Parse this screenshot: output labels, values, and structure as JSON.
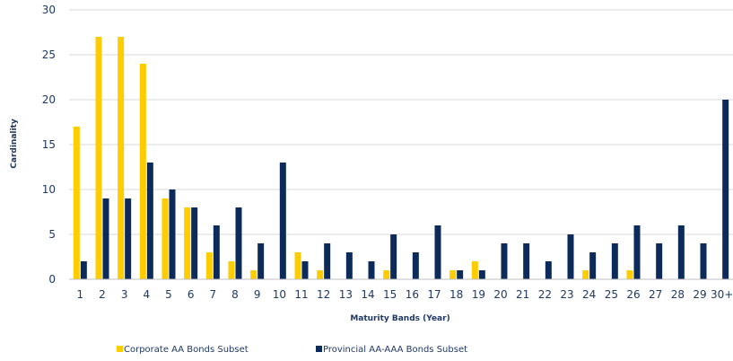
{
  "chart_data": {
    "type": "bar",
    "title": "",
    "xlabel": "Maturity Bands (Year)",
    "ylabel": "Cardinality",
    "ylim": [
      0,
      30
    ],
    "yticks": [
      "0",
      "5",
      "10",
      "15",
      "20",
      "25",
      "30"
    ],
    "grid": true,
    "legend_position": "bottom",
    "categories": [
      "1",
      "2",
      "3",
      "4",
      "5",
      "6",
      "7",
      "8",
      "9",
      "10",
      "11",
      "12",
      "13",
      "14",
      "15",
      "16",
      "17",
      "18",
      "19",
      "20",
      "21",
      "22",
      "23",
      "24",
      "25",
      "26",
      "27",
      "28",
      "29",
      "30+"
    ],
    "series": [
      {
        "name": "Corporate AA Bonds Subset",
        "color": "#ffcc00",
        "values": [
          17,
          27,
          27,
          24,
          9,
          8,
          3,
          2,
          1,
          0,
          3,
          1,
          0,
          0,
          1,
          0,
          0,
          1,
          2,
          0,
          0,
          0,
          0,
          1,
          0,
          1,
          0,
          0,
          0,
          0
        ]
      },
      {
        "name": "Provincial AA-AAA Bonds Subset",
        "color": "#0d2b5a",
        "values": [
          2,
          9,
          9,
          13,
          10,
          8,
          6,
          8,
          4,
          13,
          2,
          4,
          3,
          2,
          5,
          3,
          6,
          1,
          1,
          4,
          4,
          2,
          5,
          3,
          4,
          6,
          4,
          6,
          4,
          20
        ]
      }
    ]
  }
}
